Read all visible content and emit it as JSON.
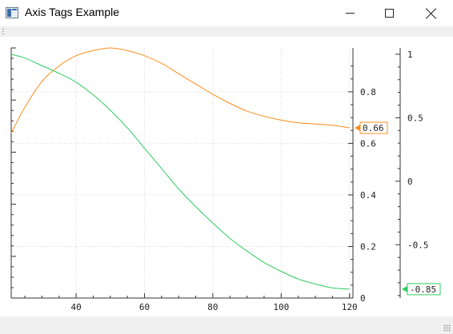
{
  "window": {
    "title": "Axis Tags Example",
    "icons": {
      "app": "window-app-icon",
      "minimize": "minimize-icon",
      "maximize": "maximize-icon",
      "close": "close-icon"
    }
  },
  "chart_data": {
    "type": "line",
    "title": "",
    "grid": true,
    "legend": "none",
    "x_axis": {
      "range": [
        21,
        121
      ],
      "ticks": [
        40,
        60,
        80,
        100,
        120
      ],
      "tick_labels": [
        "40",
        "60",
        "80",
        "100",
        "120"
      ]
    },
    "y_axis_left": {
      "range": [
        0,
        0.97
      ],
      "ticks": [],
      "tick_labels": []
    },
    "y_axis_inner_right": {
      "range": [
        0,
        0.97
      ],
      "ticks": [
        0,
        0.2,
        0.4,
        0.6,
        0.8
      ],
      "tick_labels": [
        "0",
        "0.2",
        "0.4",
        "0.6",
        "0.8"
      ]
    },
    "y_axis_outer_right": {
      "range": [
        -0.92,
        1.05
      ],
      "ticks": [
        -0.5,
        0,
        0.5,
        1
      ],
      "tick_labels": [
        "-0.5",
        "0",
        "0.5",
        "1"
      ]
    },
    "series": [
      {
        "color": "#ff8c1a",
        "axis": "inner_right",
        "x": [
          21,
          25,
          30,
          35,
          40,
          45,
          50,
          55,
          60,
          65,
          70,
          75,
          80,
          85,
          90,
          95,
          100,
          105,
          110,
          115,
          120
        ],
        "y": [
          0.64,
          0.74,
          0.84,
          0.9,
          0.94,
          0.96,
          0.97,
          0.96,
          0.94,
          0.91,
          0.87,
          0.83,
          0.79,
          0.755,
          0.725,
          0.705,
          0.69,
          0.68,
          0.675,
          0.67,
          0.66
        ],
        "tag": "0.66"
      },
      {
        "color": "#2ecc60",
        "axis": "outer_right",
        "x": [
          21,
          25,
          30,
          35,
          40,
          45,
          50,
          55,
          60,
          65,
          70,
          75,
          80,
          85,
          90,
          95,
          100,
          105,
          110,
          115,
          120
        ],
        "y": [
          1.0,
          0.97,
          0.91,
          0.85,
          0.78,
          0.68,
          0.56,
          0.42,
          0.26,
          0.1,
          -0.06,
          -0.2,
          -0.33,
          -0.45,
          -0.55,
          -0.64,
          -0.71,
          -0.77,
          -0.81,
          -0.84,
          -0.85
        ],
        "tag": "-0.85"
      }
    ]
  }
}
